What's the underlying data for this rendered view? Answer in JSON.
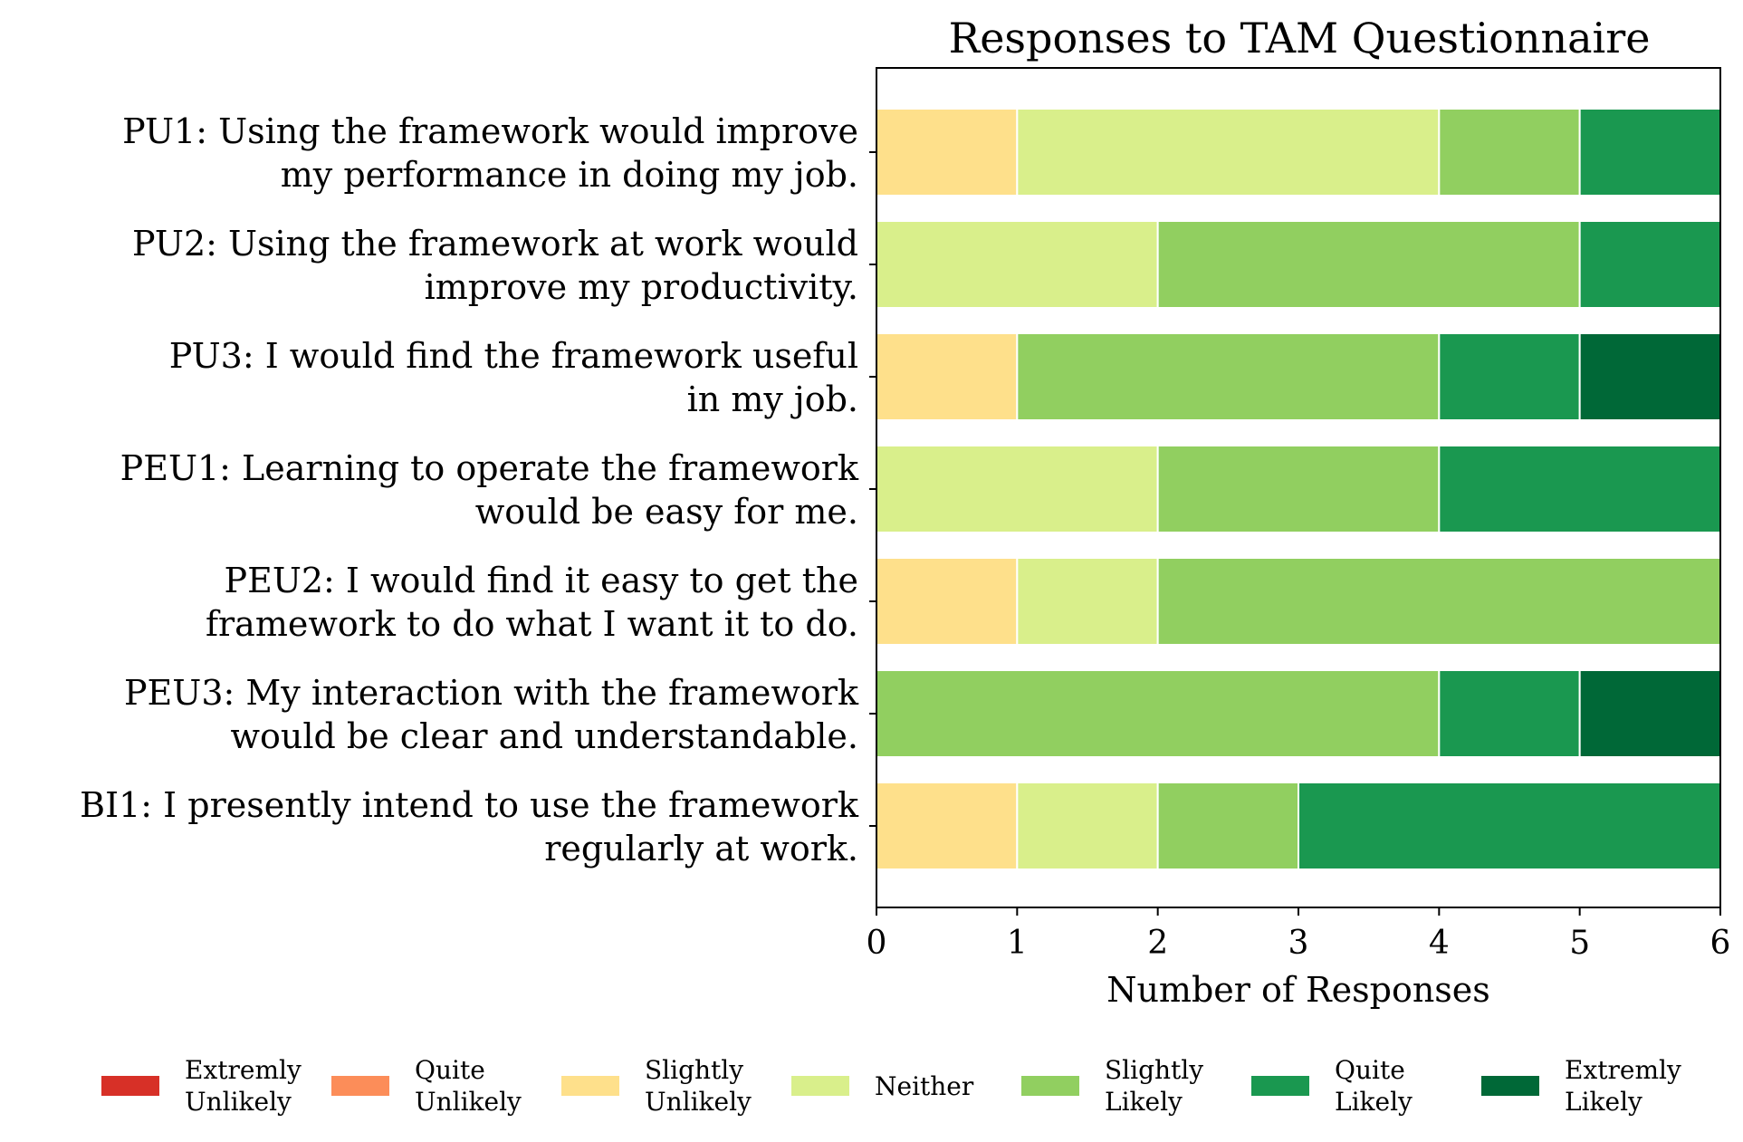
{
  "chart_data": {
    "type": "bar",
    "orientation": "horizontal",
    "stacked": true,
    "title": "Responses to TAM Questionnaire",
    "xlabel": "Number of Responses",
    "ylabel": "",
    "xlim": [
      0,
      6
    ],
    "xticks": [
      "0",
      "1",
      "2",
      "3",
      "4",
      "5",
      "6"
    ],
    "grid": false,
    "legend_position": "bottom",
    "categories": [
      [
        "PU1: Using the framework would improve",
        "my performance in doing my job."
      ],
      [
        "PU2: Using the framework at work would",
        "improve my productivity."
      ],
      [
        "PU3: I would find the framework useful",
        "in my job."
      ],
      [
        "PEU1: Learning to operate the framework",
        "would be easy for me."
      ],
      [
        "PEU2: I would find it easy to get the",
        "framework to do what I want it to do."
      ],
      [
        "PEU3: My interaction with the framework",
        "would be clear and understandable."
      ],
      [
        "BI1: I presently intend to use the framework",
        "regularly at work."
      ]
    ],
    "series": [
      {
        "name": [
          "Extremly",
          "Unlikely"
        ],
        "color": "#d73027",
        "values": [
          0,
          0,
          0,
          0,
          0,
          0,
          0
        ]
      },
      {
        "name": [
          "Quite",
          "Unlikely"
        ],
        "color": "#fc8d59",
        "values": [
          0,
          0,
          0,
          0,
          0,
          0,
          0
        ]
      },
      {
        "name": [
          "Slightly",
          "Unlikely"
        ],
        "color": "#fee08b",
        "values": [
          1,
          0,
          1,
          0,
          1,
          0,
          1
        ]
      },
      {
        "name": [
          "Neither"
        ],
        "color": "#d9ef8b",
        "values": [
          3,
          2,
          0,
          2,
          1,
          0,
          1
        ]
      },
      {
        "name": [
          "Slightly",
          "Likely"
        ],
        "color": "#91cf60",
        "values": [
          1,
          3,
          3,
          2,
          4,
          4,
          1
        ]
      },
      {
        "name": [
          "Quite",
          "Likely"
        ],
        "color": "#1a9850",
        "values": [
          1,
          1,
          1,
          2,
          0,
          1,
          3
        ]
      },
      {
        "name": [
          "Extremly",
          "Likely"
        ],
        "color": "#006837",
        "values": [
          0,
          0,
          1,
          0,
          0,
          1,
          0
        ]
      }
    ]
  }
}
